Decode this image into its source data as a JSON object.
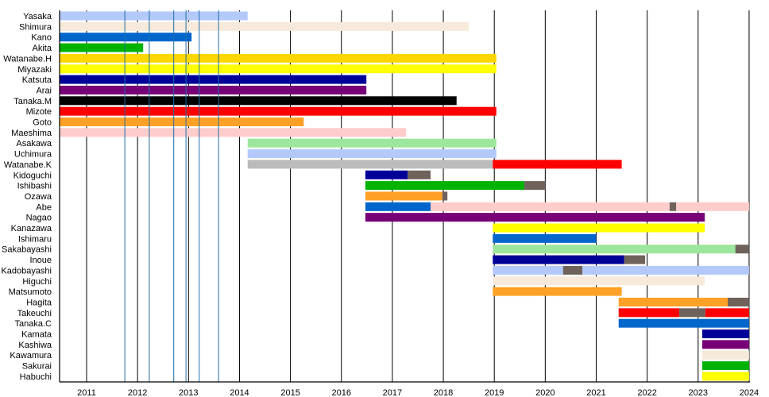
{
  "chart_data": {
    "type": "timeline",
    "xlim": [
      2010.47,
      2024.0
    ],
    "x_ticks": [
      2011,
      2012,
      2013,
      2014,
      2015,
      2016,
      2017,
      2018,
      2019,
      2020,
      2021,
      2022,
      2023,
      2024
    ],
    "event_lines": [
      2011.75,
      2012.23,
      2012.71,
      2012.95,
      2013.21,
      2013.59
    ],
    "colors": {
      "lightblue": "#B3C9FA",
      "linen": "#F7EADB",
      "blue": "#0066CC",
      "green": "#00B300",
      "gold": "#FFD700",
      "yellow": "#FFFF00",
      "navy": "#000099",
      "purple": "#770077",
      "black": "#000000",
      "red": "#FF0000",
      "orange": "#FFA126",
      "pink": "#FFCCCC",
      "lightgreen": "#9DE69D",
      "silver": "#BBBBBB",
      "hiatus": "#6E625A",
      "event_line": "#1F6FA8"
    },
    "rows": [
      {
        "name": "Yasaka",
        "segments": [
          [
            2010.47,
            2014.16,
            "lightblue"
          ]
        ]
      },
      {
        "name": "Shimura",
        "segments": [
          [
            2010.47,
            2018.5,
            "linen"
          ]
        ]
      },
      {
        "name": "Kano",
        "segments": [
          [
            2010.47,
            2013.06,
            "blue"
          ]
        ]
      },
      {
        "name": "Akita",
        "segments": [
          [
            2010.47,
            2012.11,
            "green"
          ]
        ]
      },
      {
        "name": "Watanabe.H",
        "segments": [
          [
            2010.47,
            2019.04,
            "gold"
          ]
        ]
      },
      {
        "name": "Miyazaki",
        "segments": [
          [
            2010.47,
            2019.04,
            "yellow"
          ]
        ]
      },
      {
        "name": "Katsuta",
        "segments": [
          [
            2010.47,
            2016.49,
            "navy"
          ]
        ]
      },
      {
        "name": "Arai",
        "segments": [
          [
            2010.47,
            2016.49,
            "purple"
          ]
        ]
      },
      {
        "name": "Tanaka.M",
        "segments": [
          [
            2010.47,
            2018.26,
            "black"
          ]
        ]
      },
      {
        "name": "Mizote",
        "segments": [
          [
            2010.47,
            2019.04,
            "red"
          ]
        ]
      },
      {
        "name": "Goto",
        "segments": [
          [
            2010.47,
            2015.26,
            "orange"
          ]
        ]
      },
      {
        "name": "Maeshima",
        "segments": [
          [
            2010.47,
            2017.27,
            "pink"
          ]
        ]
      },
      {
        "name": "Asakawa",
        "segments": [
          [
            2014.16,
            2019.04,
            "lightgreen"
          ]
        ]
      },
      {
        "name": "Uchimura",
        "segments": [
          [
            2014.16,
            2019.04,
            "lightblue"
          ]
        ]
      },
      {
        "name": "Watanabe.K",
        "segments": [
          [
            2014.16,
            2018.97,
            "silver"
          ],
          [
            2018.97,
            2021.5,
            "red"
          ]
        ]
      },
      {
        "name": "Kidoguchi",
        "segments": [
          [
            2016.47,
            2017.3,
            "navy"
          ],
          [
            2017.3,
            2017.75,
            "hiatus"
          ]
        ]
      },
      {
        "name": "Ishibashi",
        "segments": [
          [
            2016.47,
            2019.59,
            "green"
          ],
          [
            2019.59,
            2020.0,
            "hiatus"
          ]
        ]
      },
      {
        "name": "Ozawa",
        "segments": [
          [
            2016.47,
            2017.98,
            "orange"
          ],
          [
            2017.98,
            2018.08,
            "hiatus"
          ]
        ]
      },
      {
        "name": "Abe",
        "segments": [
          [
            2016.47,
            2017.75,
            "blue"
          ],
          [
            2017.75,
            2022.44,
            "pink"
          ],
          [
            2022.44,
            2022.57,
            "hiatus"
          ],
          [
            2022.57,
            2024.0,
            "pink"
          ]
        ]
      },
      {
        "name": "Nagao",
        "segments": [
          [
            2016.47,
            2023.13,
            "purple"
          ]
        ]
      },
      {
        "name": "Kanazawa",
        "segments": [
          [
            2018.97,
            2023.13,
            "yellow"
          ]
        ]
      },
      {
        "name": "Ishimaru",
        "segments": [
          [
            2018.97,
            2021.0,
            "blue"
          ]
        ]
      },
      {
        "name": "Sakabayashi",
        "segments": [
          [
            2018.97,
            2023.73,
            "lightgreen"
          ],
          [
            2023.73,
            2024.0,
            "hiatus"
          ]
        ]
      },
      {
        "name": "Inoue",
        "segments": [
          [
            2018.97,
            2021.55,
            "navy"
          ],
          [
            2021.55,
            2021.96,
            "hiatus"
          ]
        ]
      },
      {
        "name": "Kadobayashi",
        "segments": [
          [
            2018.97,
            2020.35,
            "lightblue"
          ],
          [
            2020.35,
            2020.73,
            "hiatus"
          ],
          [
            2020.73,
            2024.0,
            "lightblue"
          ]
        ]
      },
      {
        "name": "Higuchi",
        "segments": [
          [
            2018.97,
            2023.13,
            "linen"
          ]
        ]
      },
      {
        "name": "Matsumoto",
        "segments": [
          [
            2018.97,
            2021.5,
            "orange"
          ]
        ]
      },
      {
        "name": "Hagita",
        "segments": [
          [
            2021.44,
            2023.58,
            "orange"
          ],
          [
            2023.58,
            2024.0,
            "hiatus"
          ]
        ]
      },
      {
        "name": "Takeuchi",
        "segments": [
          [
            2021.44,
            2022.63,
            "red"
          ],
          [
            2022.63,
            2023.14,
            "hiatus"
          ],
          [
            2023.14,
            2024.0,
            "red"
          ]
        ]
      },
      {
        "name": "Tanaka.C",
        "segments": [
          [
            2021.44,
            2024.0,
            "blue"
          ]
        ]
      },
      {
        "name": "Kamata",
        "segments": [
          [
            2023.08,
            2024.0,
            "navy"
          ]
        ]
      },
      {
        "name": "Kashiwa",
        "segments": [
          [
            2023.08,
            2024.0,
            "purple"
          ]
        ]
      },
      {
        "name": "Kawamura",
        "segments": [
          [
            2023.08,
            2024.0,
            "linen"
          ]
        ]
      },
      {
        "name": "Sakurai",
        "segments": [
          [
            2023.08,
            2024.0,
            "green"
          ]
        ]
      },
      {
        "name": "Habuchi",
        "segments": [
          [
            2023.08,
            2024.0,
            "yellow"
          ]
        ]
      }
    ]
  }
}
